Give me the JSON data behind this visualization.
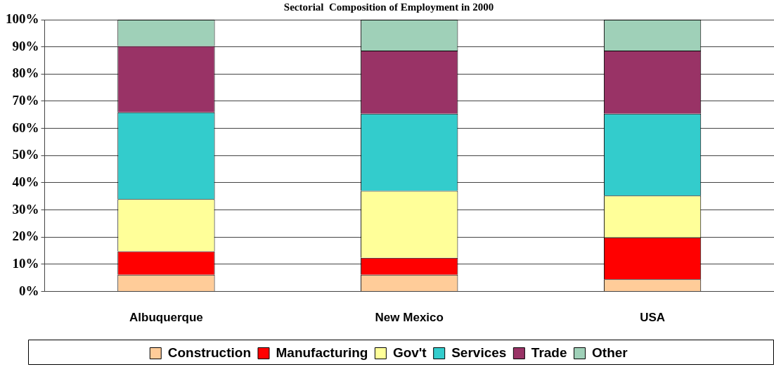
{
  "chart_data": {
    "type": "bar",
    "title": "Sectorial  Composition of Employment in 2000",
    "stacked": true,
    "categories": [
      "Albuquerque",
      "New Mexico",
      "USA"
    ],
    "series": [
      {
        "name": "Construction",
        "color": "#ffcc99",
        "values": [
          6.2,
          6.2,
          4.5
        ]
      },
      {
        "name": "Manufacturing",
        "color": "#ff0000",
        "values": [
          8.6,
          6.2,
          15.4
        ]
      },
      {
        "name": "Gov't",
        "color": "#ffff99",
        "values": [
          19.2,
          24.6,
          15.4
        ]
      },
      {
        "name": "Services",
        "color": "#33cccc",
        "values": [
          31.9,
          28.4,
          30.1
        ]
      },
      {
        "name": "Trade",
        "color": "#993366",
        "values": [
          24.4,
          23.2,
          23.2
        ]
      },
      {
        "name": "Other",
        "color": "#9fd0b8",
        "values": [
          9.7,
          11.4,
          11.4
        ]
      }
    ],
    "ylim": [
      0,
      100
    ],
    "yticks": [
      {
        "value": 0,
        "label": "0%"
      },
      {
        "value": 10,
        "label": "10%"
      },
      {
        "value": 20,
        "label": "20%"
      },
      {
        "value": 30,
        "label": "30%"
      },
      {
        "value": 40,
        "label": "40%"
      },
      {
        "value": 50,
        "label": "50%"
      },
      {
        "value": 60,
        "label": "60%"
      },
      {
        "value": 70,
        "label": "70%"
      },
      {
        "value": 80,
        "label": "80%"
      },
      {
        "value": 90,
        "label": "90%"
      },
      {
        "value": 100,
        "label": "100%"
      }
    ],
    "grid": "y",
    "legend": "bottom"
  }
}
